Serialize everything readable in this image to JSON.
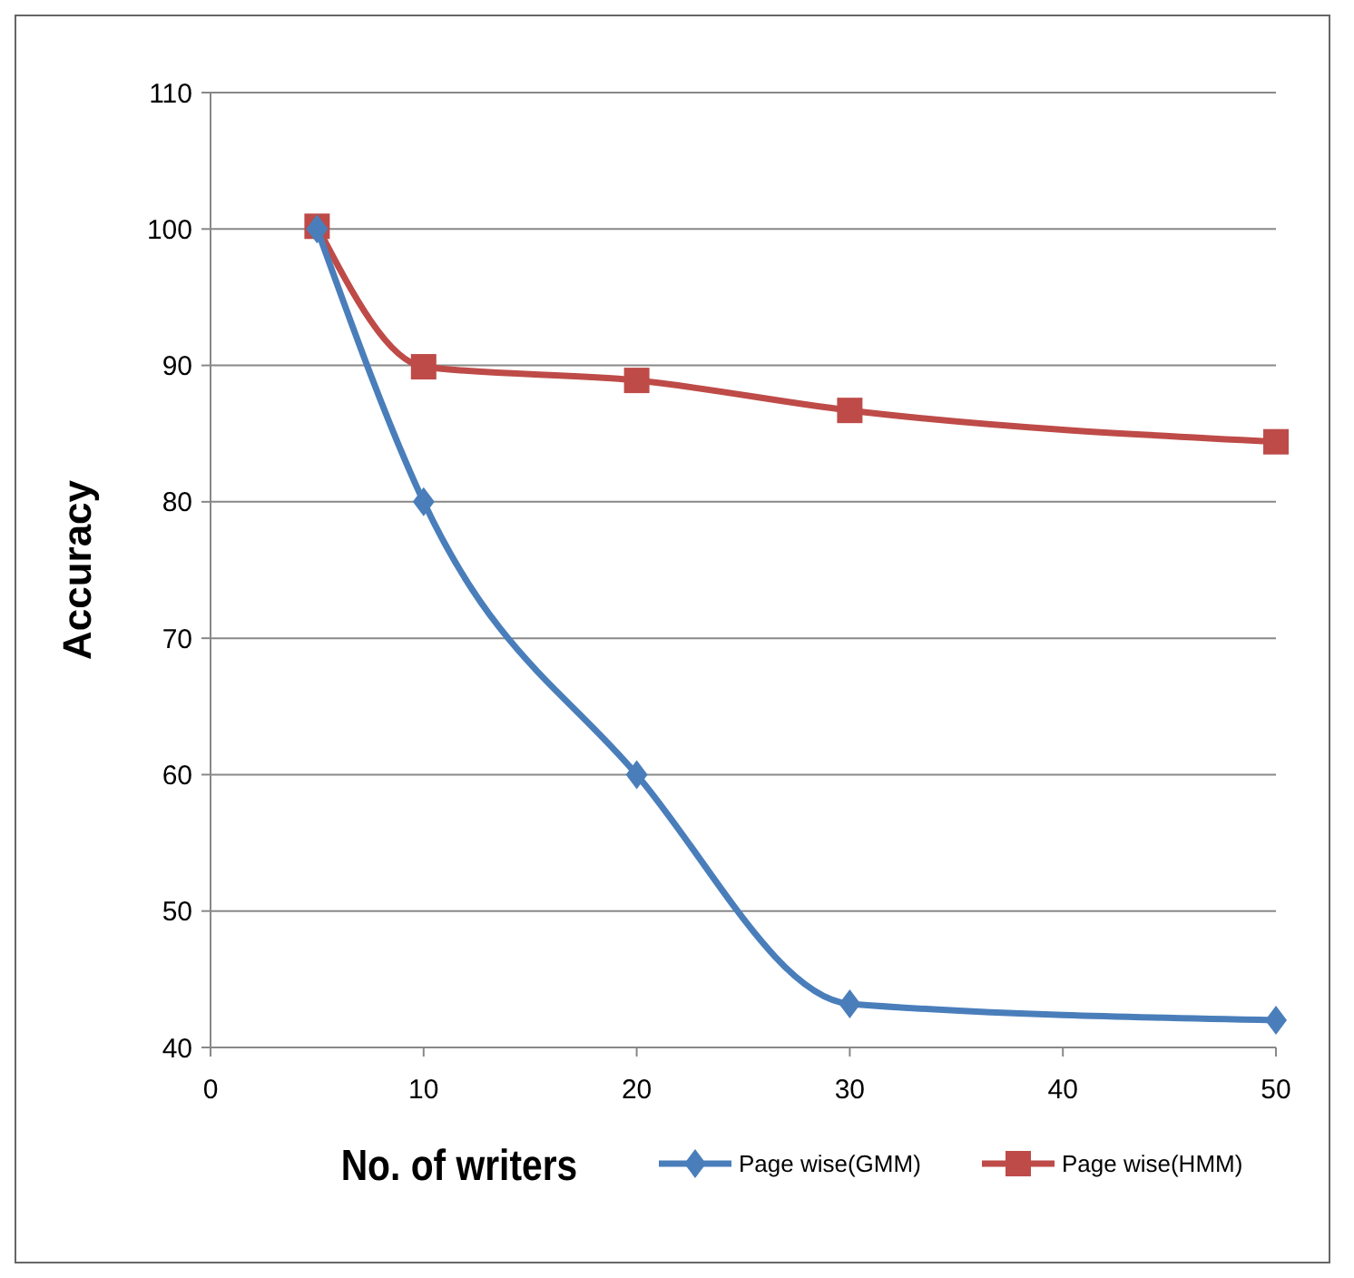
{
  "chart_data": {
    "type": "line",
    "xlabel": "No. of writers",
    "ylabel": "Accuracy",
    "x": [
      5,
      10,
      20,
      30,
      50
    ],
    "series": [
      {
        "name": "Page wise(GMM)",
        "color": "#4a7ebb",
        "values": [
          100,
          80,
          60,
          43.2,
          42
        ],
        "marker": "diamond"
      },
      {
        "name": "Page wise(HMM)",
        "color": "#be4b48",
        "values": [
          100.2,
          89.9,
          88.9,
          86.7,
          84.4
        ],
        "marker": "square"
      }
    ],
    "xlim": [
      0,
      50
    ],
    "xticks": [
      0,
      10,
      20,
      30,
      40,
      50
    ],
    "ylim": [
      40,
      110
    ],
    "yticks": [
      40,
      50,
      60,
      70,
      80,
      90,
      100,
      110
    ],
    "grid": "y",
    "legend": "bottom right",
    "line_style": "solid"
  }
}
